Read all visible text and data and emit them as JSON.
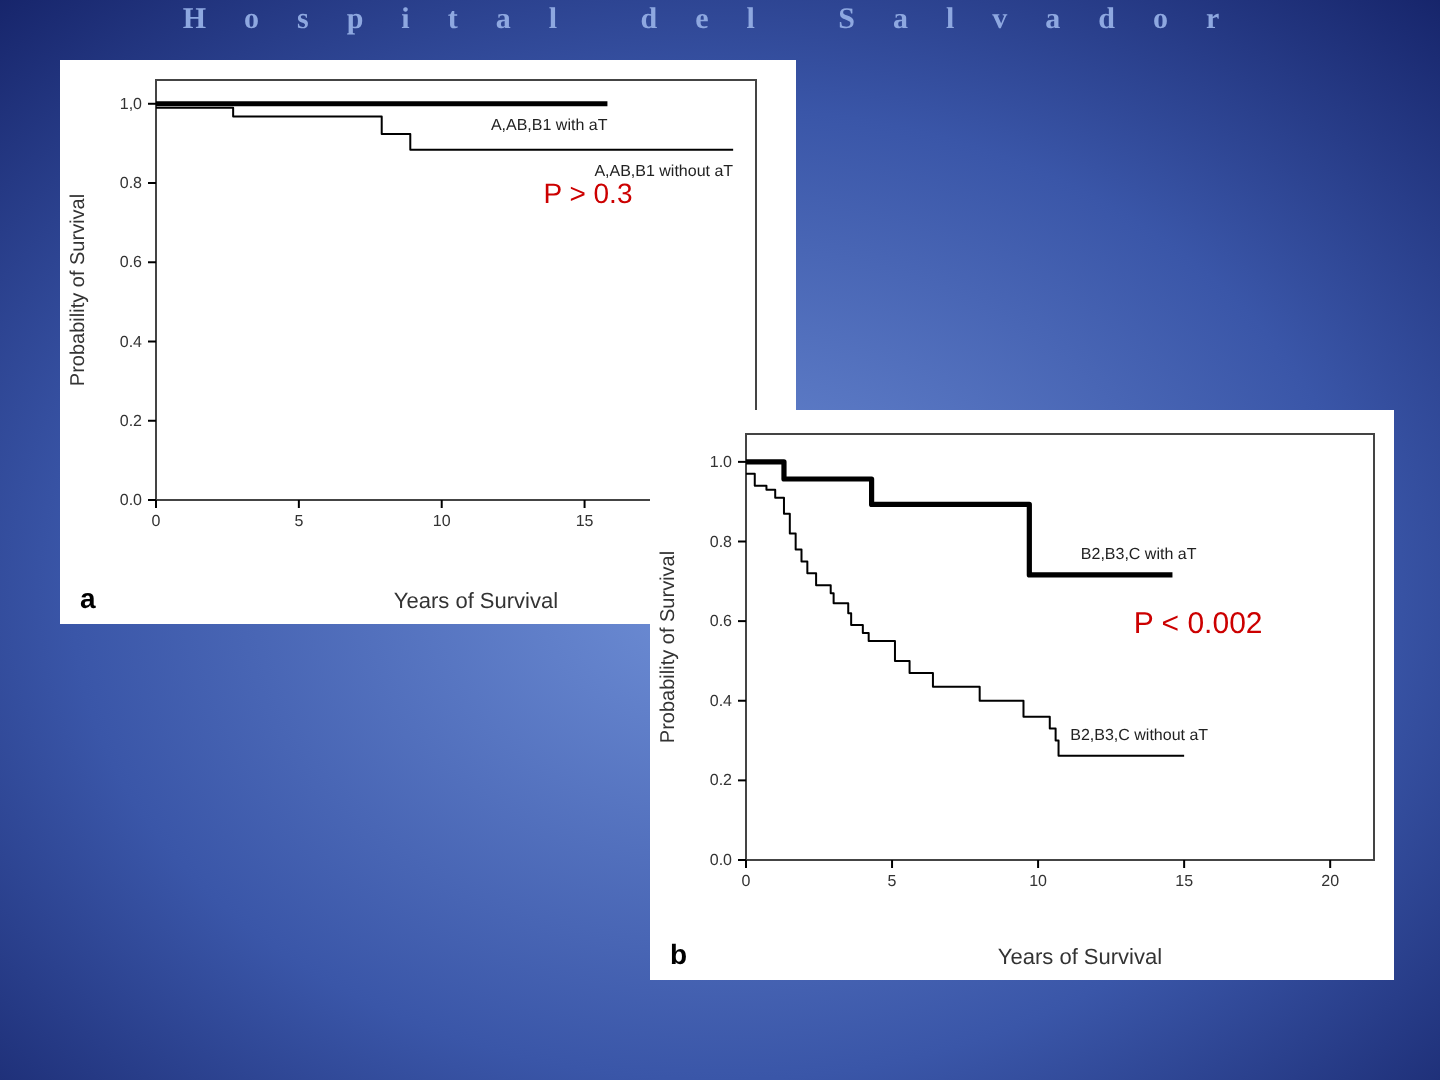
{
  "chart_data": [
    {
      "type": "step",
      "title": "Hospital del Salvador",
      "xlabel": "Years of Survival",
      "ylabel": "Probability of Survival",
      "xlim": [
        0,
        21
      ],
      "ylim": [
        0,
        1.06
      ],
      "xticks": [
        0,
        5,
        10,
        15
      ],
      "yticks": [
        {
          "value": 0,
          "label": "0.0"
        },
        {
          "value": 0.2,
          "label": "0.2"
        },
        {
          "value": 0.4,
          "label": "0.4"
        },
        {
          "value": 0.6,
          "label": "0.6"
        },
        {
          "value": 0.8,
          "label": "0.8"
        },
        {
          "value": 1,
          "label": "1,0"
        }
      ],
      "grid": false,
      "legend": false,
      "annotations": [
        "P > 0.3",
        "a"
      ],
      "series": [
        {
          "name": "A,AB,B1 with aT",
          "color": "#000000",
          "x": [
            0,
            15.8
          ],
          "values": [
            1,
            1
          ]
        },
        {
          "name": "A,AB,B1 without aT",
          "color": "#000000",
          "x": [
            0,
            2.7,
            7.9,
            8.9,
            20.2
          ],
          "values": [
            0.99,
            0.968,
            0.924,
            0.884,
            0.884
          ]
        }
      ]
    },
    {
      "type": "step",
      "xlabel": "Years of Survival",
      "ylabel": "Probability of Survival",
      "xlim": [
        0,
        21.5
      ],
      "ylim": [
        0,
        1.07
      ],
      "xticks": [
        0,
        5,
        10,
        15,
        20
      ],
      "yticks": [
        {
          "value": 0,
          "label": "0.0"
        },
        {
          "value": 0.2,
          "label": "0.2"
        },
        {
          "value": 0.4,
          "label": "0.4"
        },
        {
          "value": 0.6,
          "label": "0.6"
        },
        {
          "value": 0.8,
          "label": "0.8"
        },
        {
          "value": 1,
          "label": "1.0"
        }
      ],
      "grid": false,
      "legend": false,
      "annotations": [
        "P < 0.002",
        "b"
      ],
      "series": [
        {
          "name": "B2,B3,C with aT",
          "color": "#000000",
          "x": [
            0,
            1.3,
            4.3,
            9.7,
            14.6
          ],
          "values": [
            1,
            0.957,
            0.893,
            0.716,
            0.716
          ]
        },
        {
          "name": "B2,B3,C without aT",
          "color": "#000000",
          "x": [
            0,
            0.3,
            0.7,
            1.0,
            1.3,
            1.5,
            1.7,
            1.9,
            2.1,
            2.4,
            2.9,
            3.0,
            3.5,
            3.6,
            4.0,
            4.2,
            5.1,
            5.6,
            6.4,
            8.0,
            9.5,
            10.4,
            10.6,
            10.7,
            15.0
          ],
          "values": [
            0.97,
            0.94,
            0.93,
            0.91,
            0.87,
            0.82,
            0.78,
            0.75,
            0.72,
            0.69,
            0.67,
            0.645,
            0.62,
            0.59,
            0.57,
            0.55,
            0.5,
            0.47,
            0.435,
            0.4,
            0.36,
            0.33,
            0.3,
            0.262,
            0.262
          ]
        }
      ]
    }
  ]
}
